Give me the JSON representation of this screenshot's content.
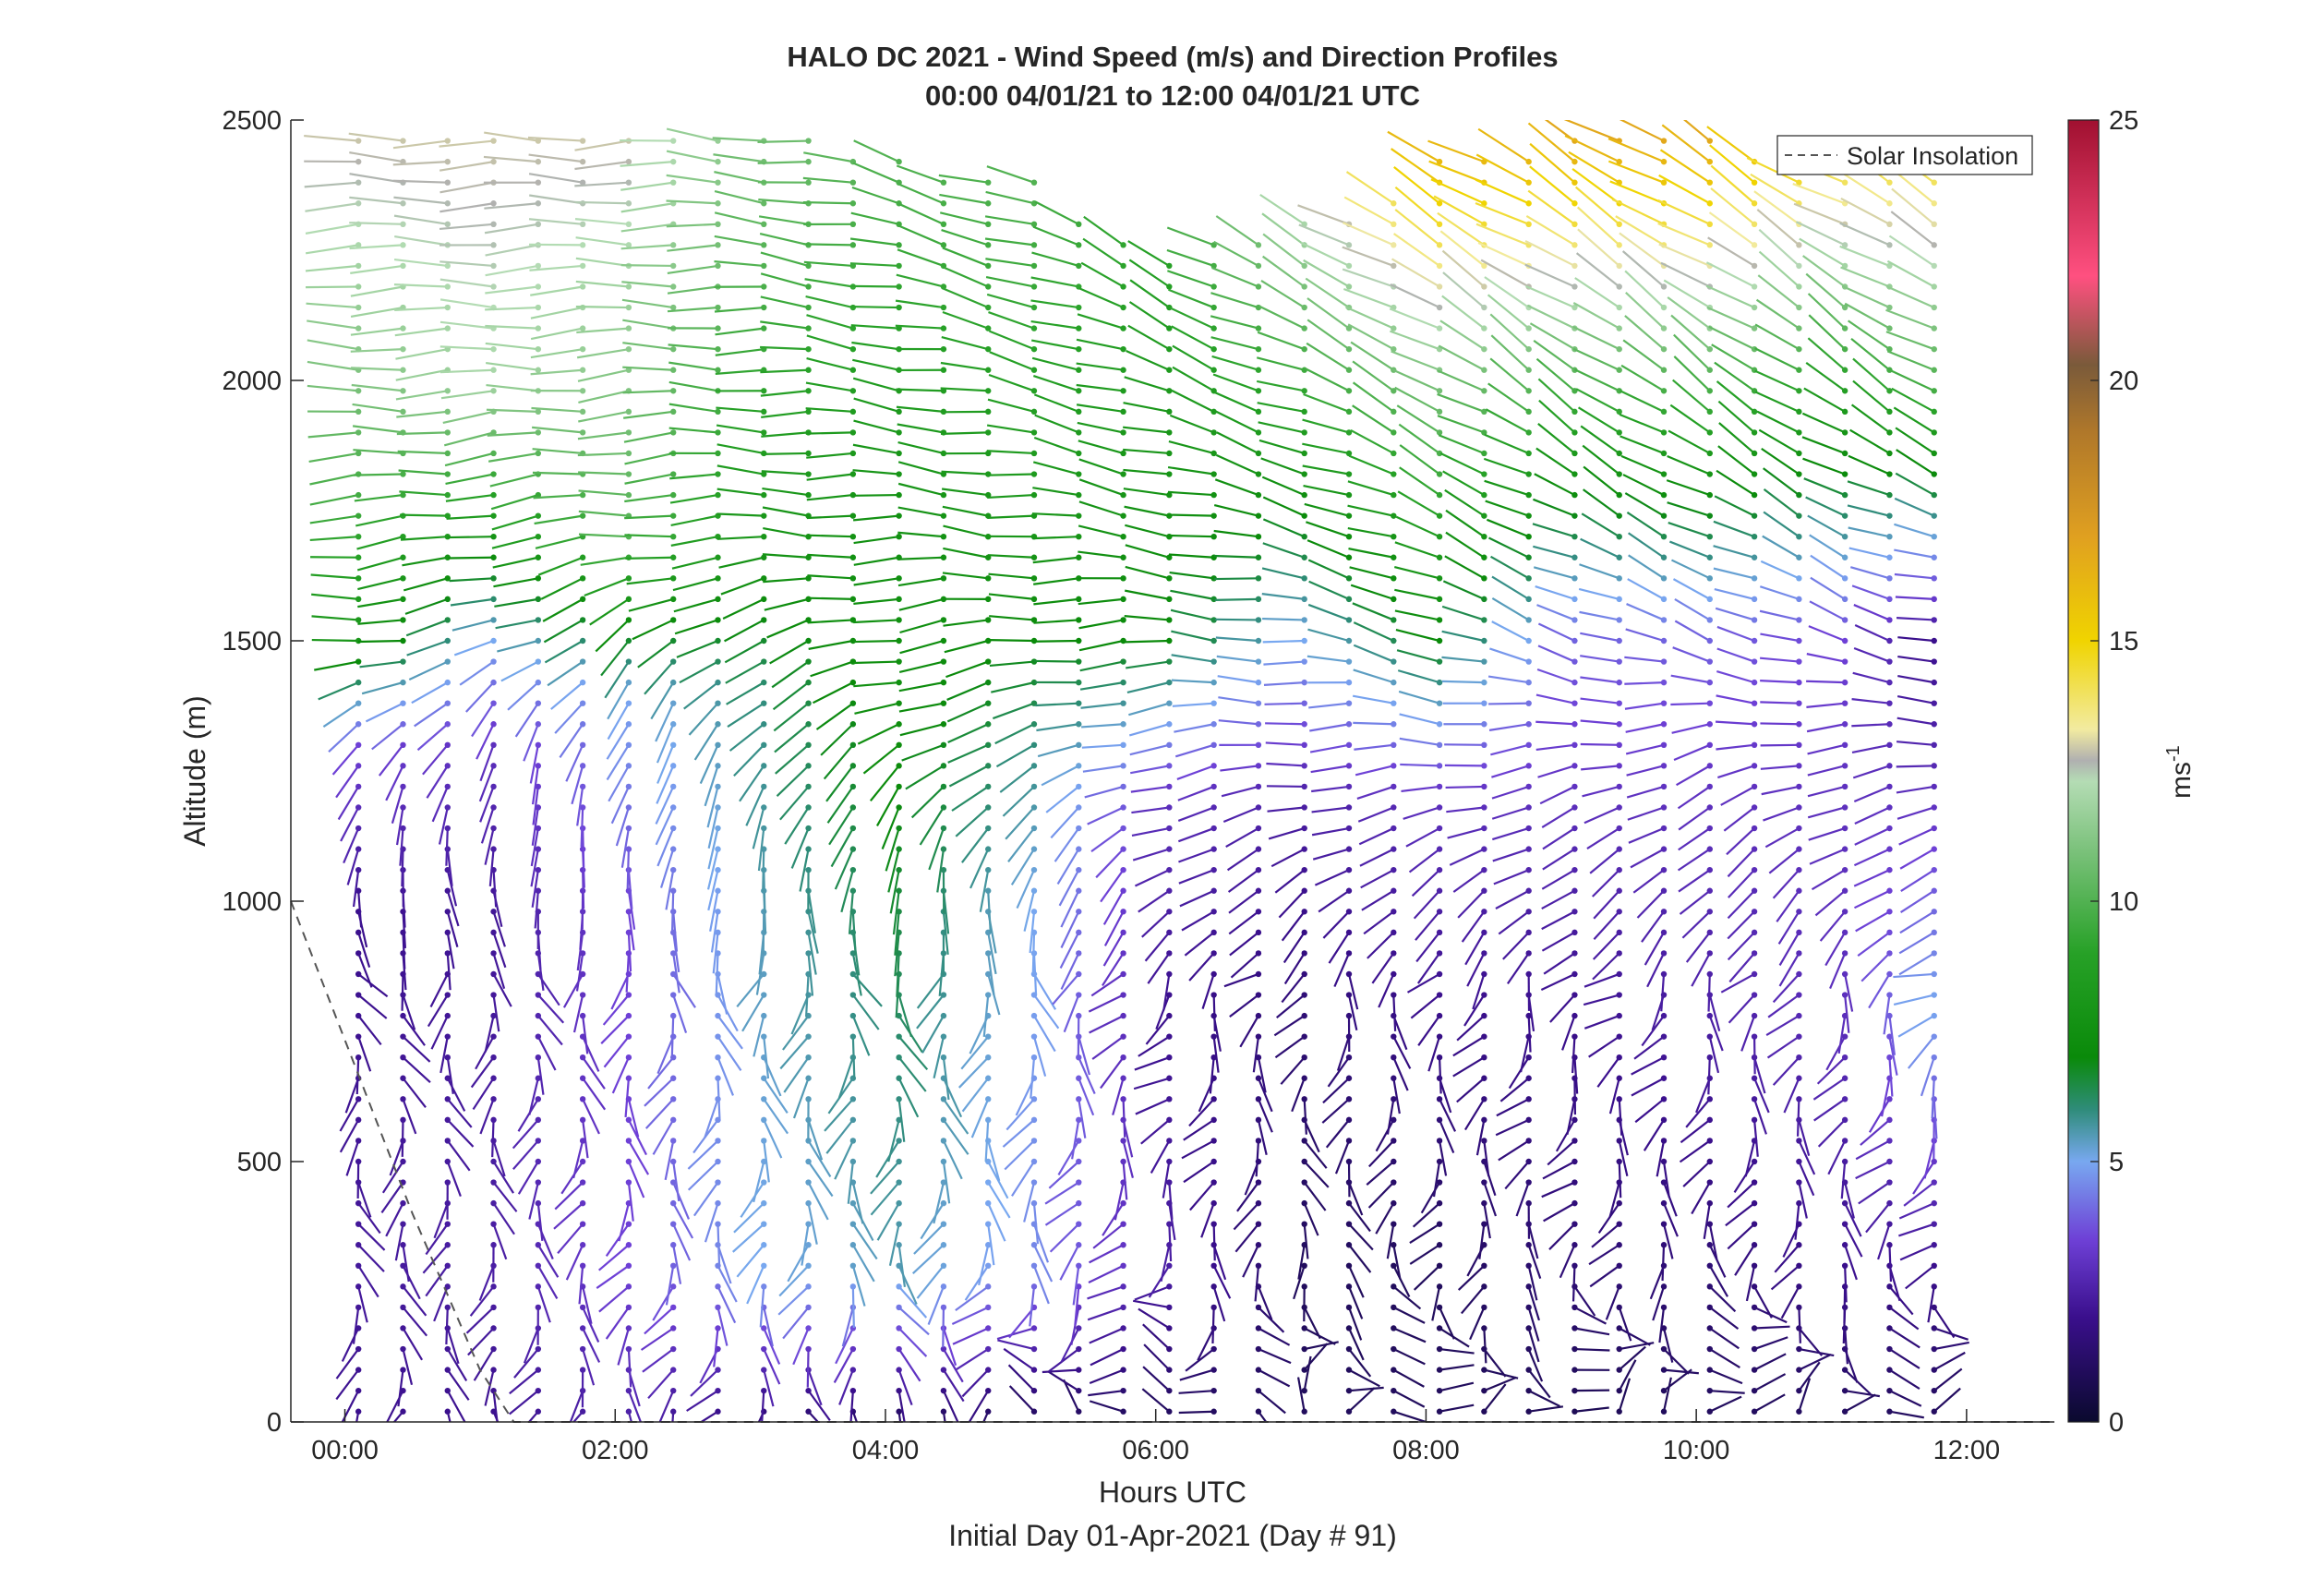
{
  "chart_data": {
    "type": "scatter",
    "subtype": "wind-barb profile",
    "title": "HALO DC 2021 - Wind Speed (m/s) and Direction Profiles",
    "subtitle": "00:00 04/01/21 to 12:00 04/01/21  UTC",
    "xlabel": "Hours UTC",
    "xlabel2": "Initial Day 01-Apr-2021 (Day # 91)",
    "ylabel": "Altitude (m)",
    "xlim": [
      -0.4,
      12.65
    ],
    "ylim": [
      0,
      2500
    ],
    "x_ticks": [
      0,
      2,
      4,
      6,
      8,
      10,
      12
    ],
    "x_tick_labels": [
      "00:00",
      "02:00",
      "04:00",
      "06:00",
      "08:00",
      "10:00",
      "12:00"
    ],
    "y_ticks": [
      0,
      500,
      1000,
      1500,
      2000,
      2500
    ],
    "y_tick_labels": [
      "0",
      "500",
      "1000",
      "1500",
      "2000",
      "2500"
    ],
    "colorbar": {
      "label": "ms",
      "label_superscript": "-1",
      "range": [
        0,
        25
      ],
      "ticks": [
        0,
        5,
        10,
        15,
        20,
        25
      ],
      "tick_labels": [
        "0",
        "5",
        "10",
        "15",
        "20",
        "25"
      ],
      "stops": [
        {
          "v": 0,
          "color": "#0a0a2e"
        },
        {
          "v": 2,
          "color": "#3a0f8c"
        },
        {
          "v": 3.5,
          "color": "#6e40d6"
        },
        {
          "v": 5,
          "color": "#78a8f0"
        },
        {
          "v": 6,
          "color": "#2f8c7a"
        },
        {
          "v": 7,
          "color": "#0a8a0a"
        },
        {
          "v": 9,
          "color": "#27a127"
        },
        {
          "v": 11,
          "color": "#7cc27c"
        },
        {
          "v": 12.3,
          "color": "#b4dcb4"
        },
        {
          "v": 12.7,
          "color": "#b0b0b0"
        },
        {
          "v": 13.3,
          "color": "#f2eba0"
        },
        {
          "v": 15,
          "color": "#f0d400"
        },
        {
          "v": 17,
          "color": "#e0a020"
        },
        {
          "v": 19,
          "color": "#b0782a"
        },
        {
          "v": 20.3,
          "color": "#7a5a3a"
        },
        {
          "v": 22,
          "color": "#ff5080"
        },
        {
          "v": 25,
          "color": "#a01030"
        }
      ]
    },
    "legend": {
      "entries": [
        "Solar Insolation"
      ],
      "placement": "top-right"
    },
    "solar_insolation": {
      "x": [
        -0.4,
        0.5,
        1.0,
        1.25,
        12.65
      ],
      "y": [
        1000,
        400,
        100,
        0,
        0
      ]
    },
    "profile_hours": [
      0.1,
      0.43,
      0.76,
      1.1,
      1.43,
      1.76,
      2.1,
      2.43,
      2.76,
      3.1,
      3.43,
      3.76,
      4.1,
      4.43,
      4.76,
      5.1,
      5.43,
      5.76,
      6.1,
      6.43,
      6.76,
      7.1,
      7.43,
      7.76,
      8.1,
      8.43,
      8.76,
      9.1,
      9.43,
      9.76,
      10.1,
      10.43,
      10.76,
      11.1,
      11.43,
      11.76
    ],
    "altitude_step_m": 40,
    "wind_keyframes": [
      {
        "x": 0.1,
        "top": 2480,
        "levels": [
          [
            0,
            180,
            2
          ],
          [
            300,
            175,
            2.3
          ],
          [
            1000,
            165,
            2
          ],
          [
            1300,
            230,
            3.5
          ],
          [
            1500,
            265,
            8
          ],
          [
            2000,
            270,
            11
          ],
          [
            2480,
            270,
            13
          ]
        ]
      },
      {
        "x": 1.1,
        "top": 2480,
        "levels": [
          [
            0,
            190,
            2
          ],
          [
            300,
            185,
            2.5
          ],
          [
            1000,
            170,
            2.2
          ],
          [
            1300,
            200,
            3
          ],
          [
            1500,
            255,
            5
          ],
          [
            2000,
            268,
            12
          ],
          [
            2480,
            270,
            13
          ]
        ]
      },
      {
        "x": 2.1,
        "top": 2480,
        "levels": [
          [
            0,
            200,
            2.5
          ],
          [
            300,
            195,
            3.5
          ],
          [
            1000,
            180,
            3.5
          ],
          [
            1400,
            210,
            5
          ],
          [
            1700,
            265,
            10
          ],
          [
            2480,
            270,
            13
          ]
        ]
      },
      {
        "x": 3.1,
        "top": 2480,
        "levels": [
          [
            0,
            200,
            1.5
          ],
          [
            300,
            190,
            5
          ],
          [
            1000,
            178,
            5.5
          ],
          [
            1400,
            230,
            6
          ],
          [
            1700,
            270,
            8
          ],
          [
            2480,
            275,
            11
          ]
        ]
      },
      {
        "x": 4.1,
        "top": 2420,
        "levels": [
          [
            0,
            130,
            1
          ],
          [
            300,
            185,
            5.5
          ],
          [
            1000,
            175,
            6.5
          ],
          [
            1400,
            255,
            7.5
          ],
          [
            1700,
            272,
            7.5
          ],
          [
            2420,
            285,
            10
          ]
        ]
      },
      {
        "x": 5.1,
        "top": 2380,
        "levels": [
          [
            0,
            300,
            1
          ],
          [
            300,
            195,
            4.5
          ],
          [
            1000,
            180,
            5
          ],
          [
            1300,
            250,
            6
          ],
          [
            1700,
            275,
            8
          ],
          [
            2380,
            290,
            10
          ]
        ]
      },
      {
        "x": 6.1,
        "top": 2250,
        "levels": [
          [
            0,
            340,
            1
          ],
          [
            300,
            210,
            2.5
          ],
          [
            800,
            215,
            2
          ],
          [
            1200,
            255,
            3
          ],
          [
            1500,
            270,
            7
          ],
          [
            2250,
            300,
            9
          ]
        ]
      },
      {
        "x": 7.1,
        "top": 2300,
        "levels": [
          [
            0,
            20,
            1
          ],
          [
            300,
            160,
            1
          ],
          [
            800,
            200,
            1.5
          ],
          [
            1200,
            260,
            2.5
          ],
          [
            1500,
            278,
            5
          ],
          [
            2300,
            300,
            12
          ]
        ]
      },
      {
        "x": 8.1,
        "top": 2420,
        "levels": [
          [
            0,
            80,
            1
          ],
          [
            300,
            200,
            1
          ],
          [
            800,
            190,
            2
          ],
          [
            1200,
            260,
            3
          ],
          [
            1500,
            290,
            7
          ],
          [
            2000,
            300,
            11
          ],
          [
            2420,
            300,
            16
          ]
        ]
      },
      {
        "x": 9.1,
        "top": 2480,
        "levels": [
          [
            0,
            40,
            0.8
          ],
          [
            300,
            200,
            1.5
          ],
          [
            800,
            220,
            2
          ],
          [
            1200,
            250,
            3
          ],
          [
            1500,
            290,
            4
          ],
          [
            2000,
            305,
            10
          ],
          [
            2480,
            300,
            17
          ]
        ]
      },
      {
        "x": 10.1,
        "top": 2480,
        "levels": [
          [
            0,
            20,
            1
          ],
          [
            300,
            190,
            1.5
          ],
          [
            800,
            200,
            2.5
          ],
          [
            1200,
            240,
            3
          ],
          [
            1500,
            290,
            4
          ],
          [
            2000,
            305,
            10
          ],
          [
            2480,
            300,
            17
          ]
        ]
      },
      {
        "x": 11.1,
        "top": 2380,
        "levels": [
          [
            0,
            60,
            1
          ],
          [
            300,
            190,
            2
          ],
          [
            800,
            200,
            3
          ],
          [
            1200,
            250,
            3
          ],
          [
            1500,
            290,
            3.5
          ],
          [
            2000,
            305,
            9
          ],
          [
            2380,
            300,
            14
          ]
        ]
      },
      {
        "x": 11.76,
        "top": 2380,
        "levels": [
          [
            0,
            40,
            1
          ],
          [
            300,
            210,
            2
          ],
          [
            800,
            220,
            5
          ],
          [
            1200,
            260,
            3
          ],
          [
            1500,
            280,
            2
          ],
          [
            2000,
            300,
            10
          ],
          [
            2380,
            300,
            14
          ]
        ]
      }
    ]
  }
}
